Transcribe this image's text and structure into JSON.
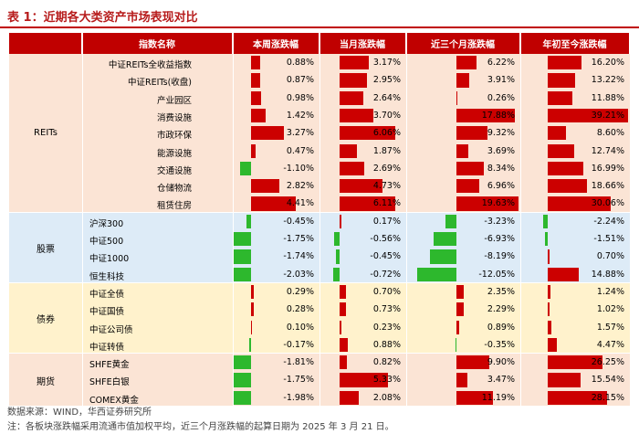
{
  "title": "表 1：近期各大类资产市场表现对比",
  "headers": [
    "指数名称",
    "本周涨跌幅",
    "当月涨跌幅",
    "近三个月涨跌幅",
    "年初至今涨跌幅"
  ],
  "groups": [
    {
      "label": "REITs",
      "color": "#fbe4d5",
      "rows": [
        {
          "name": "中证REITs全收益指数",
          "values": [
            0.88,
            3.17,
            6.22,
            16.2
          ],
          "labels": [
            "0.88%",
            "3.17%",
            "6.22%",
            "16.20%"
          ]
        },
        {
          "name": "中证REITs(收盘)",
          "values": [
            0.87,
            2.95,
            3.91,
            13.22
          ],
          "labels": [
            "0.87%",
            "2.95%",
            "3.91%",
            "13.22%"
          ]
        },
        {
          "name": "产业园区",
          "values": [
            0.98,
            2.64,
            0.26,
            11.88
          ],
          "labels": [
            "0.98%",
            "2.64%",
            "0.26%",
            "11.88%"
          ]
        },
        {
          "name": "消费设施",
          "values": [
            1.42,
            3.7,
            17.88,
            39.21
          ],
          "labels": [
            "1.42%",
            "3.70%",
            "17.88%",
            "39.21%"
          ]
        },
        {
          "name": "市政环保",
          "values": [
            3.27,
            6.06,
            9.32,
            8.6
          ],
          "labels": [
            "3.27%",
            "6.06%",
            "9.32%",
            "8.60%"
          ]
        },
        {
          "name": "能源设施",
          "values": [
            0.47,
            1.87,
            3.69,
            12.74
          ],
          "labels": [
            "0.47%",
            "1.87%",
            "3.69%",
            "12.74%"
          ]
        },
        {
          "name": "交通设施",
          "values": [
            -1.1,
            2.69,
            8.34,
            16.99
          ],
          "labels": [
            "-1.10%",
            "2.69%",
            "8.34%",
            "16.99%"
          ]
        },
        {
          "name": "仓储物流",
          "values": [
            2.82,
            4.73,
            6.96,
            18.66
          ],
          "labels": [
            "2.82%",
            "4.73%",
            "6.96%",
            "18.66%"
          ]
        },
        {
          "name": "租赁住房",
          "values": [
            4.41,
            6.11,
            19.63,
            30.06
          ],
          "labels": [
            "4.41%",
            "6.11%",
            "19.63%",
            "30.06%"
          ]
        }
      ]
    },
    {
      "label": "股票",
      "color": "#ddebf7",
      "rows": [
        {
          "name": "沪深300",
          "values": [
            -0.45,
            0.17,
            -3.23,
            -2.24
          ],
          "labels": [
            "-0.45%",
            "0.17%",
            "-3.23%",
            "-2.24%"
          ]
        },
        {
          "name": "中证500",
          "values": [
            -1.75,
            -0.56,
            -6.93,
            -1.51
          ],
          "labels": [
            "-1.75%",
            "-0.56%",
            "-6.93%",
            "-1.51%"
          ]
        },
        {
          "name": "中证1000",
          "values": [
            -1.74,
            -0.45,
            -8.19,
            0.7
          ],
          "labels": [
            "-1.74%",
            "-0.45%",
            "-8.19%",
            "0.70%"
          ]
        },
        {
          "name": "恒生科技",
          "values": [
            -2.03,
            -0.72,
            -12.05,
            14.88
          ],
          "labels": [
            "-2.03%",
            "-0.72%",
            "-12.05%",
            "14.88%"
          ]
        }
      ]
    },
    {
      "label": "债券",
      "color": "#fff2cc",
      "rows": [
        {
          "name": "中证全债",
          "values": [
            0.29,
            0.7,
            2.35,
            1.24
          ],
          "labels": [
            "0.29%",
            "0.70%",
            "2.35%",
            "1.24%"
          ]
        },
        {
          "name": "中证国债",
          "values": [
            0.28,
            0.73,
            2.29,
            1.02
          ],
          "labels": [
            "0.28%",
            "0.73%",
            "2.29%",
            "1.02%"
          ]
        },
        {
          "name": "中证公司债",
          "values": [
            0.1,
            0.23,
            0.89,
            1.57
          ],
          "labels": [
            "0.10%",
            "0.23%",
            "0.89%",
            "1.57%"
          ]
        },
        {
          "name": "中证转债",
          "values": [
            -0.17,
            0.88,
            -0.35,
            4.47
          ],
          "labels": [
            "-0.17%",
            "0.88%",
            "-0.35%",
            "4.47%"
          ]
        }
      ]
    },
    {
      "label": "期货",
      "color": "#fbe4d5",
      "rows": [
        {
          "name": "SHFE黄金",
          "values": [
            -1.81,
            0.82,
            9.9,
            26.25
          ],
          "labels": [
            "-1.81%",
            "0.82%",
            "9.90%",
            "26.25%"
          ]
        },
        {
          "name": "SHFE白银",
          "values": [
            -1.75,
            5.33,
            3.47,
            15.54
          ],
          "labels": [
            "-1.75%",
            "5.33%",
            "3.47%",
            "15.54%"
          ]
        },
        {
          "name": "COMEX黄金",
          "values": [
            -1.98,
            2.08,
            11.19,
            28.15
          ],
          "labels": [
            "-1.98%",
            "2.08%",
            "11.19%",
            "28.15%"
          ]
        }
      ]
    }
  ],
  "notes": [
    "数据来源：WIND，华西证券研究所",
    "注：各板块涨跌幅采用流通市值加权平均，近三个月涨跌幅的起算日期为 2025 年 3 月 21 日。"
  ],
  "colors": {
    "positive": "#cc0000",
    "negative": "#2db82d",
    "header": "#c00000"
  }
}
